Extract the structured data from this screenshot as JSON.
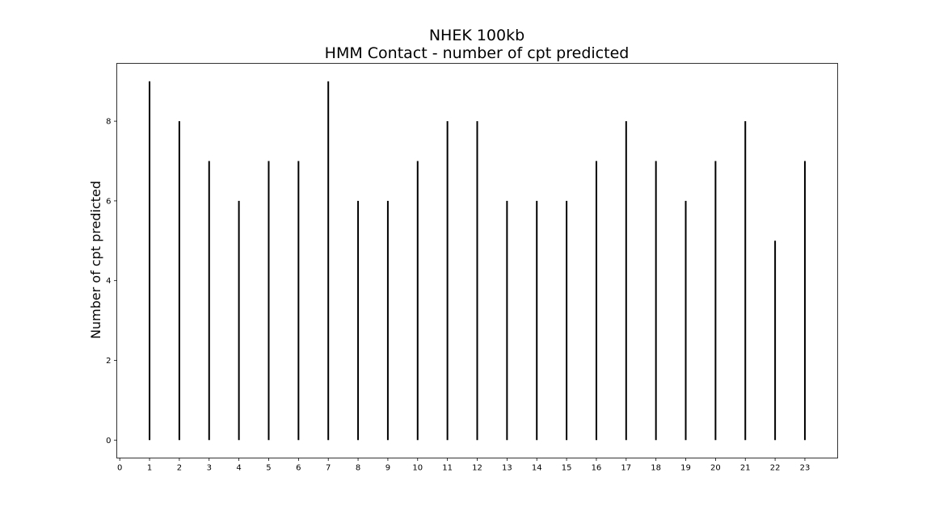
{
  "chart_data": {
    "type": "bar",
    "title": "NHEK 100kb",
    "subtitle": "HMM Contact - number of cpt predicted",
    "xlabel": "",
    "ylabel": "Number of cpt predicted",
    "x": [
      1,
      2,
      3,
      4,
      5,
      6,
      7,
      8,
      9,
      10,
      11,
      12,
      13,
      14,
      15,
      16,
      17,
      18,
      19,
      20,
      21,
      22,
      23
    ],
    "values": [
      9,
      8,
      7,
      6,
      7,
      7,
      9,
      6,
      6,
      7,
      8,
      8,
      6,
      6,
      6,
      7,
      8,
      7,
      6,
      7,
      8,
      5,
      7
    ],
    "xlim": [
      -0.1,
      24.1
    ],
    "ylim": [
      -0.45,
      9.45
    ],
    "xticks": [
      "0",
      "1",
      "2",
      "3",
      "4",
      "5",
      "6",
      "7",
      "8",
      "9",
      "10",
      "11",
      "12",
      "13",
      "14",
      "15",
      "16",
      "17",
      "18",
      "19",
      "20",
      "21",
      "22",
      "23"
    ],
    "yticks": [
      "0",
      "2",
      "4",
      "6",
      "8"
    ],
    "grid": false,
    "legend": "none",
    "bar_color": "#000000"
  }
}
